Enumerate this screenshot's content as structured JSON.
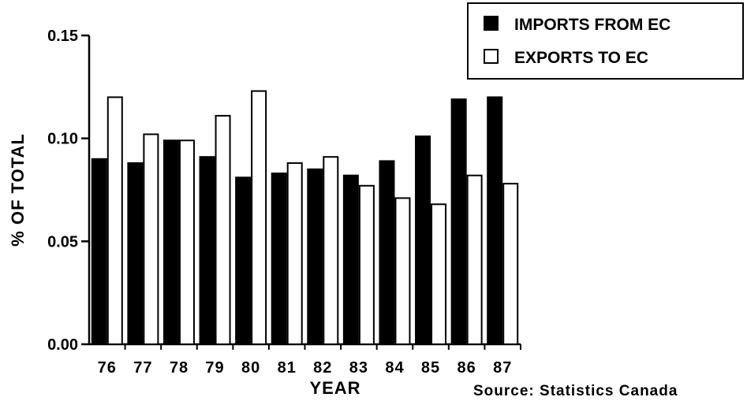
{
  "chart_data": {
    "type": "bar",
    "title": "",
    "xlabel": "YEAR",
    "ylabel": "% OF TOTAL",
    "ylim": [
      0,
      0.15
    ],
    "yticks": [
      "0.00",
      "0.05",
      "0.10",
      "0.15"
    ],
    "ytick_values": [
      0,
      0.05,
      0.1,
      0.15
    ],
    "categories": [
      "76",
      "77",
      "78",
      "79",
      "80",
      "81",
      "82",
      "83",
      "84",
      "85",
      "86",
      "87"
    ],
    "series": [
      {
        "name": "IMPORTS FROM EC",
        "color": "#000000",
        "values": [
          0.09,
          0.088,
          0.099,
          0.091,
          0.081,
          0.083,
          0.085,
          0.082,
          0.089,
          0.101,
          0.119,
          0.12
        ]
      },
      {
        "name": "EXPORTS TO EC",
        "color": "#ffffff",
        "values": [
          0.12,
          0.102,
          0.099,
          0.111,
          0.123,
          0.088,
          0.091,
          0.077,
          0.071,
          0.068,
          0.082,
          0.078
        ]
      }
    ],
    "legend_position": "top-right",
    "grid": false,
    "source": "Source:  Statistics  Canada"
  }
}
